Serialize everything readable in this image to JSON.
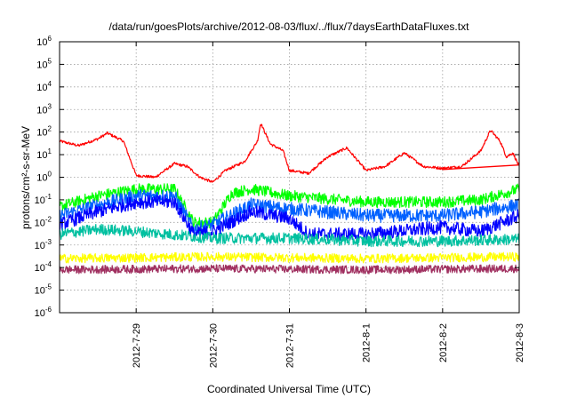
{
  "chart_data": {
    "type": "line",
    "title": "/data/run/goesPlots/archive/2012-08-03/flux/../flux/7daysEarthDataFluxes.txt",
    "xlabel": "Coordinated Universal Time (UTC)",
    "ylabel": "protons/cm²-s-sr-MeV",
    "y_scale": "log",
    "ylim": [
      1e-06,
      1000000.0
    ],
    "y_tick_labels": [
      {
        "exp": "-6",
        "value": 1e-06
      },
      {
        "exp": "-5",
        "value": 1e-05
      },
      {
        "exp": "-4",
        "value": 0.0001
      },
      {
        "exp": "-3",
        "value": 0.001
      },
      {
        "exp": "-2",
        "value": 0.01
      },
      {
        "exp": "-1",
        "value": 0.1
      },
      {
        "exp": "0",
        "value": 1
      },
      {
        "exp": "1",
        "value": 10
      },
      {
        "exp": "2",
        "value": 100
      },
      {
        "exp": "3",
        "value": 1000
      },
      {
        "exp": "4",
        "value": 10000
      },
      {
        "exp": "5",
        "value": 100000
      },
      {
        "exp": "6",
        "value": 1000000
      }
    ],
    "xlim": [
      "2012-07-28",
      "2012-08-03"
    ],
    "x_ticks": [
      "2012-7-29",
      "2012-7-30",
      "2012-7-31",
      "2012-8-1",
      "2012-8-2",
      "2012-8-3"
    ],
    "x_tick_dates": [
      "2012-07-29",
      "2012-07-30",
      "2012-07-31",
      "2012-08-01",
      "2012-08-02",
      "2012-08-03"
    ],
    "grid": true,
    "colors": {
      "red": "#ff0000",
      "green": "#00ff00",
      "blue_dark": "#0000ff",
      "blue_light": "#0060ff",
      "teal": "#00c0a0",
      "yellow": "#ffff00",
      "magenta": "#a03060",
      "grid": "#a0a0a0"
    },
    "series": [
      {
        "color": "red",
        "noise": 0.06,
        "points": [
          [
            "2012-07-28T00:00",
            40
          ],
          [
            "2012-07-28T06:00",
            25
          ],
          [
            "2012-07-28T12:00",
            50
          ],
          [
            "2012-07-28T15:00",
            90
          ],
          [
            "2012-07-28T20:00",
            40
          ],
          [
            "2012-07-29T00:00",
            1.2
          ],
          [
            "2012-07-29T06:00",
            1.0
          ],
          [
            "2012-07-29T12:00",
            4
          ],
          [
            "2012-07-29T16:00",
            3
          ],
          [
            "2012-07-29T20:00",
            1.0
          ],
          [
            "2012-07-30T00:00",
            0.6
          ],
          [
            "2012-07-30T04:00",
            2
          ],
          [
            "2012-07-30T10:00",
            5
          ],
          [
            "2012-07-30T14:00",
            40
          ],
          [
            "2012-07-30T15:00",
            250
          ],
          [
            "2012-07-30T18:00",
            30
          ],
          [
            "2012-07-30T22:00",
            15
          ],
          [
            "2012-07-31T00:00",
            2
          ],
          [
            "2012-07-31T06:00",
            1.5
          ],
          [
            "2012-07-31T12:00",
            8
          ],
          [
            "2012-07-31T18:00",
            20
          ],
          [
            "2012-08-01T00:00",
            2
          ],
          [
            "2012-08-01T06:00",
            3
          ],
          [
            "2012-08-01T12:00",
            12
          ],
          [
            "2012-08-01T18:00",
            3
          ],
          [
            "2012-08-02T00:00",
            2.5
          ],
          [
            "2012-08-02T06:00",
            3
          ],
          [
            "2012-08-02T12:00",
            15
          ],
          [
            "2012-08-02T15:00",
            120
          ],
          [
            "2012-08-02T18:00",
            40
          ],
          [
            "2012-08-02T20:00",
            8
          ],
          [
            "2012-08-02T22:00",
            12
          ],
          [
            "2012-08-03T00:00",
            3
          ]
        ],
        "fit": [
          [
            "2012-08-02T00:00",
            2.2
          ],
          [
            "2012-08-03T00:00",
            3.5
          ]
        ]
      },
      {
        "color": "green",
        "noise": 0.25,
        "points": [
          [
            "2012-07-28T00:00",
            0.05
          ],
          [
            "2012-07-28T12:00",
            0.15
          ],
          [
            "2012-07-29T00:00",
            0.3
          ],
          [
            "2012-07-29T12:00",
            0.3
          ],
          [
            "2012-07-29T18:00",
            0.01
          ],
          [
            "2012-07-30T00:00",
            0.01
          ],
          [
            "2012-07-30T06:00",
            0.2
          ],
          [
            "2012-07-30T12:00",
            0.3
          ],
          [
            "2012-07-31T00:00",
            0.15
          ],
          [
            "2012-08-01T00:00",
            0.08
          ],
          [
            "2012-08-02T00:00",
            0.08
          ],
          [
            "2012-08-02T12:00",
            0.1
          ],
          [
            "2012-08-03T00:00",
            0.3
          ]
        ]
      },
      {
        "color": "blue_light",
        "noise": 0.3,
        "points": [
          [
            "2012-07-28T00:00",
            0.02
          ],
          [
            "2012-07-28T12:00",
            0.06
          ],
          [
            "2012-07-29T00:00",
            0.15
          ],
          [
            "2012-07-29T12:00",
            0.15
          ],
          [
            "2012-07-29T18:00",
            0.005
          ],
          [
            "2012-07-30T00:00",
            0.008
          ],
          [
            "2012-07-30T12:00",
            0.06
          ],
          [
            "2012-07-31T00:00",
            0.04
          ],
          [
            "2012-08-01T00:00",
            0.02
          ],
          [
            "2012-08-02T00:00",
            0.02
          ],
          [
            "2012-08-02T12:00",
            0.03
          ],
          [
            "2012-08-03T00:00",
            0.06
          ]
        ]
      },
      {
        "color": "blue_dark",
        "noise": 0.3,
        "points": [
          [
            "2012-07-28T00:00",
            0.008
          ],
          [
            "2012-07-28T12:00",
            0.03
          ],
          [
            "2012-07-29T00:00",
            0.08
          ],
          [
            "2012-07-29T12:00",
            0.08
          ],
          [
            "2012-07-29T18:00",
            0.003
          ],
          [
            "2012-07-30T00:00",
            0.004
          ],
          [
            "2012-07-30T12:00",
            0.03
          ],
          [
            "2012-07-31T00:00",
            0.015
          ],
          [
            "2012-07-31T06:00",
            0.003
          ],
          [
            "2012-08-01T00:00",
            0.003
          ],
          [
            "2012-08-02T00:00",
            0.006
          ],
          [
            "2012-08-02T12:00",
            0.004
          ],
          [
            "2012-08-03T00:00",
            0.02
          ]
        ]
      },
      {
        "color": "teal",
        "noise": 0.25,
        "points": [
          [
            "2012-07-28T00:00",
            0.003
          ],
          [
            "2012-07-28T12:00",
            0.005
          ],
          [
            "2012-07-29T00:00",
            0.004
          ],
          [
            "2012-07-30T00:00",
            0.002
          ],
          [
            "2012-07-31T00:00",
            0.002
          ],
          [
            "2012-08-01T00:00",
            0.0015
          ],
          [
            "2012-08-02T00:00",
            0.0015
          ],
          [
            "2012-08-03T00:00",
            0.0018
          ]
        ]
      },
      {
        "color": "yellow",
        "noise": 0.2,
        "points": [
          [
            "2012-07-28T00:00",
            0.00025
          ],
          [
            "2012-07-30T00:00",
            0.0003
          ],
          [
            "2012-08-01T00:00",
            0.00025
          ],
          [
            "2012-08-03T00:00",
            0.0003
          ]
        ]
      },
      {
        "color": "magenta",
        "noise": 0.18,
        "points": [
          [
            "2012-07-28T00:00",
            8e-05
          ],
          [
            "2012-07-30T00:00",
            9e-05
          ],
          [
            "2012-08-01T00:00",
            8e-05
          ],
          [
            "2012-08-03T00:00",
            9e-05
          ]
        ]
      }
    ]
  }
}
